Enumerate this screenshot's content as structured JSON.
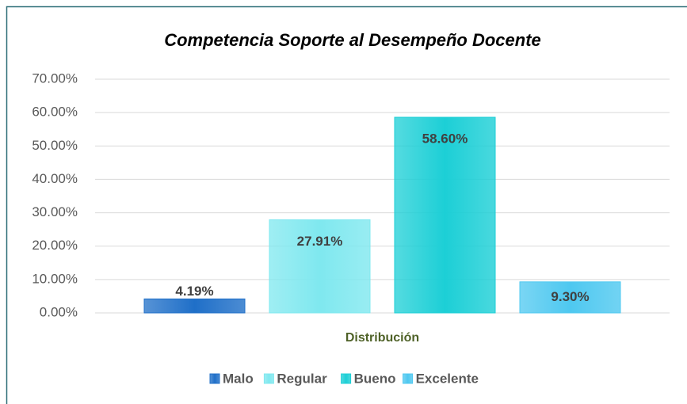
{
  "chart_data": {
    "type": "bar",
    "title": "Competencia Soporte al Desempeño Docente",
    "categories": [
      "Distribución"
    ],
    "series": [
      {
        "name": "Malo",
        "color": "#1f6fc8",
        "values": [
          4.19
        ],
        "value_labels": [
          "4.19%"
        ]
      },
      {
        "name": "Regular",
        "color": "#7fe8ef",
        "values": [
          27.91
        ],
        "value_labels": [
          "27.91%"
        ]
      },
      {
        "name": "Bueno",
        "color": "#1ccfd6",
        "values": [
          58.6
        ],
        "value_labels": [
          "58.60%"
        ]
      },
      {
        "name": "Excelente",
        "color": "#4ec8f0",
        "values": [
          9.3
        ],
        "value_labels": [
          "9.30%"
        ]
      }
    ],
    "ylim": [
      0,
      70
    ],
    "yticks": [
      {
        "value": 0,
        "label": "0.00%"
      },
      {
        "value": 10,
        "label": "10.00%"
      },
      {
        "value": 20,
        "label": "20.00%"
      },
      {
        "value": 30,
        "label": "30.00%"
      },
      {
        "value": 40,
        "label": "40.00%"
      },
      {
        "value": 50,
        "label": "50.00%"
      },
      {
        "value": 60,
        "label": "60.00%"
      },
      {
        "value": 70,
        "label": "70.00%"
      }
    ],
    "grid": true,
    "legend": "bottom"
  }
}
